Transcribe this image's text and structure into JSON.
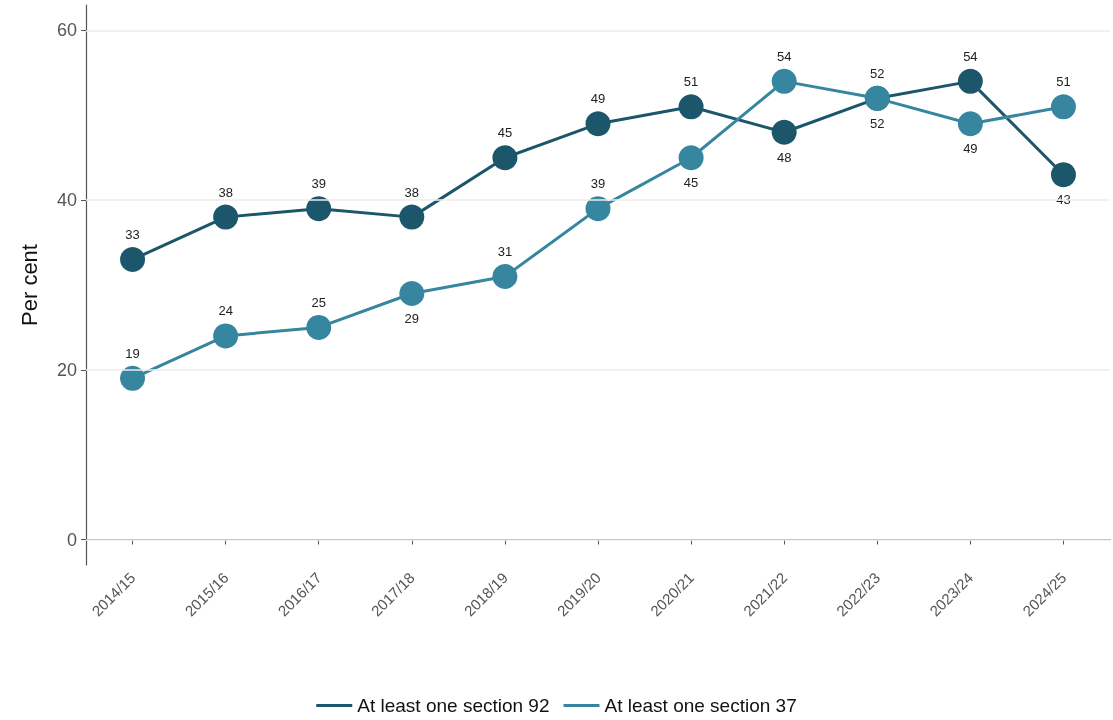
{
  "chart_data": {
    "type": "line",
    "ylabel": "Per cent",
    "categories": [
      "2014/15",
      "2015/16",
      "2016/17",
      "2017/18",
      "2018/19",
      "2019/20",
      "2020/21",
      "2021/22",
      "2022/23",
      "2023/24",
      "2024/25"
    ],
    "series": [
      {
        "name": "At least one section 92",
        "color": "#1c566b",
        "values": [
          33,
          38,
          39,
          38,
          45,
          49,
          51,
          48,
          52,
          54,
          43
        ]
      },
      {
        "name": "At least one section 37",
        "color": "#36869f",
        "values": [
          19,
          24,
          25,
          29,
          31,
          39,
          45,
          54,
          52,
          49,
          51
        ]
      }
    ],
    "ylim": [
      -3,
      63
    ],
    "yticks": [
      0,
      20,
      40,
      60
    ],
    "grid": "y",
    "legend": "bottom",
    "marker": "circle",
    "line_style": "solid",
    "data_labels": true
  }
}
